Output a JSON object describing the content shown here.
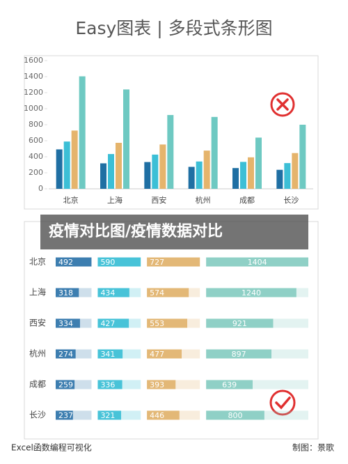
{
  "header": {
    "title": "Easy图表 | 多段式条形图"
  },
  "chart_data": [
    {
      "type": "column",
      "categories": [
        "北京",
        "上海",
        "西安",
        "杭州",
        "成都",
        "长沙"
      ],
      "series": [
        {
          "color": "#1f6fa3",
          "values": [
            492,
            318,
            334,
            274,
            259,
            237
          ]
        },
        {
          "color": "#3cbfd6",
          "values": [
            590,
            434,
            427,
            341,
            336,
            321
          ]
        },
        {
          "color": "#e5b46c",
          "values": [
            727,
            574,
            553,
            477,
            393,
            446
          ]
        },
        {
          "color": "#6ec9c2",
          "values": [
            1404,
            1240,
            921,
            897,
            639,
            800
          ]
        }
      ],
      "ylim": [
        0,
        1600
      ],
      "yticks": [
        0,
        200,
        400,
        600,
        800,
        1000,
        1200,
        1400,
        1600
      ]
    },
    {
      "type": "segmented-bar",
      "categories": [
        "北京",
        "上海",
        "西安",
        "杭州",
        "成都",
        "长沙"
      ],
      "series": [
        {
          "color": "#3d7eb0",
          "values": [
            492,
            318,
            334,
            274,
            259,
            237
          ]
        },
        {
          "color": "#48c3d8",
          "values": [
            590,
            434,
            427,
            341,
            336,
            321
          ]
        },
        {
          "color": "#e3b877",
          "values": [
            727,
            574,
            553,
            477,
            393,
            446
          ]
        },
        {
          "color": "#8fd0c6",
          "values": [
            1404,
            1240,
            921,
            897,
            639,
            800
          ]
        }
      ]
    }
  ],
  "overlay_text": "疫情对比图/疫情数据对比",
  "footer": {
    "left": "Excel函数编程可视化",
    "right": "制图：景歌"
  }
}
